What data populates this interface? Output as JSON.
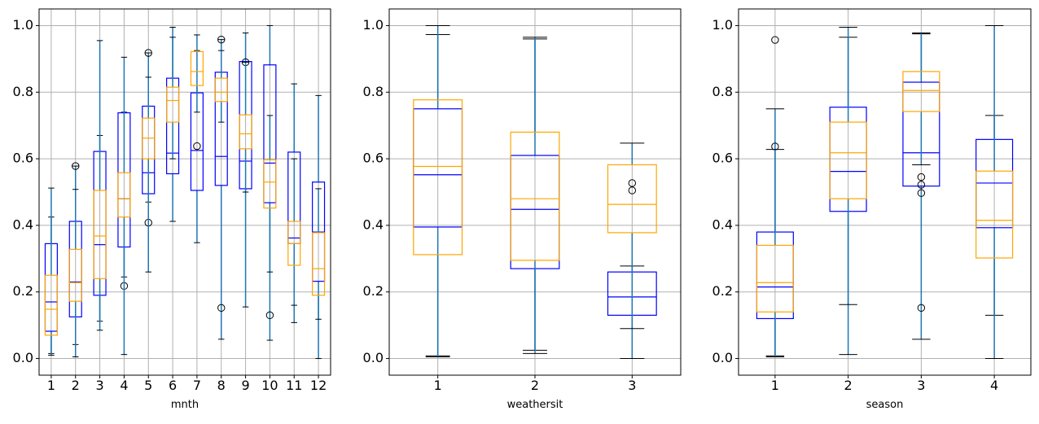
{
  "colors": {
    "blue_box": "#0000ff",
    "orange_box": "#ffa500",
    "whisker": "#1f77b4",
    "cap": "#000000",
    "grid": "#b0b0b0"
  },
  "chart_data": [
    {
      "type": "box",
      "xlabel": "mnth",
      "ylim": [
        -0.05,
        1.05
      ],
      "yticks": [
        0.0,
        0.2,
        0.4,
        0.6,
        0.8,
        1.0
      ],
      "categories": [
        "1",
        "2",
        "3",
        "4",
        "5",
        "6",
        "7",
        "8",
        "9",
        "10",
        "11",
        "12"
      ],
      "grid": true,
      "series": [
        {
          "color": "blue",
          "boxes": [
            {
              "q1": 0.082,
              "med": 0.17,
              "q3": 0.345,
              "lo": 0.015,
              "hi": 0.425,
              "fliers": []
            },
            {
              "q1": 0.125,
              "med": 0.23,
              "q3": 0.412,
              "lo": 0.042,
              "hi": 0.578,
              "fliers": [
                0.578
              ]
            },
            {
              "q1": 0.19,
              "med": 0.342,
              "q3": 0.622,
              "lo": 0.112,
              "hi": 0.67,
              "fliers": []
            },
            {
              "q1": 0.335,
              "med": 0.48,
              "q3": 0.738,
              "lo": 0.245,
              "hi": 0.74,
              "fliers": [
                0.218
              ]
            },
            {
              "q1": 0.495,
              "med": 0.558,
              "q3": 0.758,
              "lo": 0.47,
              "hi": 0.918,
              "fliers": [
                0.408,
                0.918
              ]
            },
            {
              "q1": 0.555,
              "med": 0.617,
              "q3": 0.842,
              "lo": 0.412,
              "hi": 0.995,
              "fliers": []
            },
            {
              "q1": 0.505,
              "med": 0.625,
              "q3": 0.798,
              "lo": 0.348,
              "hi": 0.925,
              "fliers": [
                0.638
              ]
            },
            {
              "q1": 0.52,
              "med": 0.607,
              "q3": 0.86,
              "lo": 0.058,
              "hi": 0.958,
              "fliers": [
                0.152,
                0.958
              ]
            },
            {
              "q1": 0.51,
              "med": 0.593,
              "q3": 0.892,
              "lo": 0.155,
              "hi": 0.978,
              "fliers": [
                0.89
              ]
            },
            {
              "q1": 0.468,
              "med": 0.587,
              "q3": 0.882,
              "lo": 0.055,
              "hi": 1.0,
              "fliers": [
                0.13
              ]
            },
            {
              "q1": 0.345,
              "med": 0.362,
              "q3": 0.62,
              "lo": 0.108,
              "hi": 0.825,
              "fliers": []
            },
            {
              "q1": 0.232,
              "med": 0.38,
              "q3": 0.53,
              "lo": 0.0,
              "hi": 0.79,
              "fliers": []
            }
          ]
        },
        {
          "color": "orange",
          "boxes": [
            {
              "q1": 0.07,
              "med": 0.148,
              "q3": 0.25,
              "lo": 0.01,
              "hi": 0.512,
              "fliers": []
            },
            {
              "q1": 0.172,
              "med": 0.228,
              "q3": 0.328,
              "lo": 0.005,
              "hi": 0.508,
              "fliers": []
            },
            {
              "q1": 0.24,
              "med": 0.368,
              "q3": 0.505,
              "lo": 0.085,
              "hi": 0.955,
              "fliers": []
            },
            {
              "q1": 0.425,
              "med": 0.48,
              "q3": 0.558,
              "lo": 0.012,
              "hi": 0.905,
              "fliers": []
            },
            {
              "q1": 0.6,
              "med": 0.662,
              "q3": 0.722,
              "lo": 0.26,
              "hi": 0.845,
              "fliers": []
            },
            {
              "q1": 0.71,
              "med": 0.775,
              "q3": 0.815,
              "lo": 0.6,
              "hi": 0.965,
              "fliers": []
            },
            {
              "q1": 0.82,
              "med": 0.862,
              "q3": 0.922,
              "lo": 0.74,
              "hi": 0.972,
              "fliers": []
            },
            {
              "q1": 0.772,
              "med": 0.8,
              "q3": 0.842,
              "lo": 0.71,
              "hi": 0.925,
              "fliers": []
            },
            {
              "q1": 0.63,
              "med": 0.675,
              "q3": 0.732,
              "lo": 0.5,
              "hi": 0.89,
              "fliers": []
            },
            {
              "q1": 0.452,
              "med": 0.53,
              "q3": 0.597,
              "lo": 0.26,
              "hi": 0.73,
              "fliers": []
            },
            {
              "q1": 0.28,
              "med": 0.345,
              "q3": 0.412,
              "lo": 0.16,
              "hi": 0.6,
              "fliers": []
            },
            {
              "q1": 0.19,
              "med": 0.27,
              "q3": 0.378,
              "lo": 0.118,
              "hi": 0.51,
              "fliers": []
            }
          ]
        }
      ]
    },
    {
      "type": "box",
      "xlabel": "weathersit",
      "ylim": [
        -0.05,
        1.05
      ],
      "yticks": [
        0.0,
        0.2,
        0.4,
        0.6,
        0.8,
        1.0
      ],
      "categories": [
        "1",
        "2",
        "3"
      ],
      "grid": true,
      "series": [
        {
          "color": "blue",
          "boxes": [
            {
              "q1": 0.395,
              "med": 0.552,
              "q3": 0.75,
              "lo": 0.008,
              "hi": 0.973,
              "fliers": []
            },
            {
              "q1": 0.27,
              "med": 0.448,
              "q3": 0.61,
              "lo": 0.025,
              "hi": 0.96,
              "fliers": []
            },
            {
              "q1": 0.13,
              "med": 0.185,
              "q3": 0.26,
              "lo": 0.0,
              "hi": 0.278,
              "fliers": []
            }
          ]
        },
        {
          "color": "orange",
          "boxes": [
            {
              "q1": 0.312,
              "med": 0.577,
              "q3": 0.777,
              "lo": 0.005,
              "hi": 1.0,
              "fliers": []
            },
            {
              "q1": 0.295,
              "med": 0.48,
              "q3": 0.68,
              "lo": 0.015,
              "hi": 0.965,
              "fliers": []
            },
            {
              "q1": 0.378,
              "med": 0.463,
              "q3": 0.582,
              "lo": 0.09,
              "hi": 0.647,
              "fliers": [
                0.527,
                0.505
              ]
            }
          ]
        }
      ]
    },
    {
      "type": "box",
      "xlabel": "season",
      "ylim": [
        -0.05,
        1.05
      ],
      "yticks": [
        0.0,
        0.2,
        0.4,
        0.6,
        0.8,
        1.0
      ],
      "categories": [
        "1",
        "2",
        "3",
        "4"
      ],
      "grid": true,
      "series": [
        {
          "color": "blue",
          "boxes": [
            {
              "q1": 0.12,
              "med": 0.215,
              "q3": 0.38,
              "lo": 0.008,
              "hi": 0.75,
              "fliers": [
                0.957,
                0.637
              ]
            },
            {
              "q1": 0.442,
              "med": 0.562,
              "q3": 0.755,
              "lo": 0.012,
              "hi": 0.965,
              "fliers": []
            },
            {
              "q1": 0.518,
              "med": 0.618,
              "q3": 0.83,
              "lo": 0.058,
              "hi": 0.975,
              "fliers": [
                0.152,
                0.497,
                0.522,
                0.545
              ]
            },
            {
              "q1": 0.393,
              "med": 0.527,
              "q3": 0.658,
              "lo": 0.13,
              "hi": 0.73,
              "fliers": []
            }
          ]
        },
        {
          "color": "orange",
          "boxes": [
            {
              "q1": 0.14,
              "med": 0.228,
              "q3": 0.34,
              "lo": 0.005,
              "hi": 0.628,
              "fliers": []
            },
            {
              "q1": 0.48,
              "med": 0.618,
              "q3": 0.71,
              "lo": 0.162,
              "hi": 0.995,
              "fliers": []
            },
            {
              "q1": 0.742,
              "med": 0.805,
              "q3": 0.862,
              "lo": 0.582,
              "hi": 0.978,
              "fliers": []
            },
            {
              "q1": 0.302,
              "med": 0.415,
              "q3": 0.563,
              "lo": 0.0,
              "hi": 1.0,
              "fliers": []
            }
          ]
        }
      ]
    }
  ]
}
